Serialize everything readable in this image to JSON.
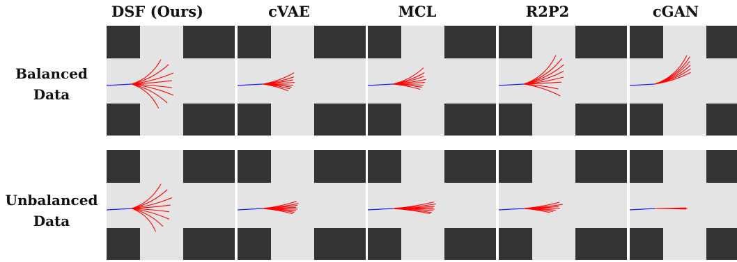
{
  "figure": {
    "columns": [
      "DSF (Ours)",
      "cVAE",
      "MCL",
      "R2P2",
      "cGAN"
    ],
    "rows": [
      {
        "label_line1": "Balanced",
        "label_line2": "Data"
      },
      {
        "label_line1": "Unbalanced",
        "label_line2": "Data"
      }
    ],
    "colors": {
      "road": "#e4e4e4",
      "building": "#333333",
      "history": "#1a1aff",
      "prediction": "#ff0000"
    },
    "panels": [
      [
        {
          "method": "DSF (Ours)",
          "angles": [
            -40,
            -28,
            -15,
            -5,
            5,
            15,
            28,
            42
          ],
          "lengths": [
            55,
            60,
            62,
            58,
            58,
            62,
            58,
            52
          ]
        },
        {
          "method": "cVAE",
          "angles": [
            -20,
            -13,
            -8,
            -3,
            2,
            6,
            10,
            15
          ],
          "lengths": [
            48,
            46,
            44,
            46,
            44,
            42,
            40,
            38
          ]
        },
        {
          "method": "MCL",
          "angles": [
            -28,
            -20,
            -14,
            -8,
            -3,
            2,
            6,
            11
          ],
          "lengths": [
            50,
            48,
            46,
            48,
            46,
            44,
            42,
            40
          ]
        },
        {
          "method": "R2P2",
          "angles": [
            -42,
            -34,
            -26,
            -18,
            -10,
            -3,
            8,
            18
          ],
          "lengths": [
            62,
            66,
            64,
            60,
            58,
            54,
            50,
            55
          ]
        },
        {
          "method": "cGAN",
          "angles": [
            -42,
            -38,
            -33,
            -28,
            -23,
            -18
          ],
          "lengths": [
            62,
            64,
            60,
            58,
            56,
            54
          ]
        }
      ],
      [
        {
          "method": "DSF (Ours)",
          "angles": [
            -40,
            -28,
            -15,
            -5,
            5,
            16,
            30,
            44
          ],
          "lengths": [
            55,
            58,
            60,
            56,
            54,
            56,
            52,
            48
          ]
        },
        {
          "method": "cVAE",
          "angles": [
            -12,
            -8,
            -5,
            -2,
            1,
            4,
            7,
            10
          ],
          "lengths": [
            50,
            52,
            50,
            48,
            50,
            48,
            46,
            44
          ]
        },
        {
          "method": "MCL",
          "angles": [
            -9,
            -6,
            -3,
            -1,
            1,
            3,
            6,
            8
          ],
          "lengths": [
            60,
            62,
            60,
            58,
            60,
            58,
            56,
            54
          ]
        },
        {
          "method": "R2P2",
          "angles": [
            -10,
            -6,
            -3,
            0,
            3,
            6,
            9
          ],
          "lengths": [
            52,
            56,
            50,
            52,
            46,
            42,
            38
          ]
        },
        {
          "method": "cGAN",
          "angles": [
            -1,
            0,
            0,
            1
          ],
          "lengths": [
            45,
            46,
            47,
            45
          ]
        }
      ]
    ]
  }
}
